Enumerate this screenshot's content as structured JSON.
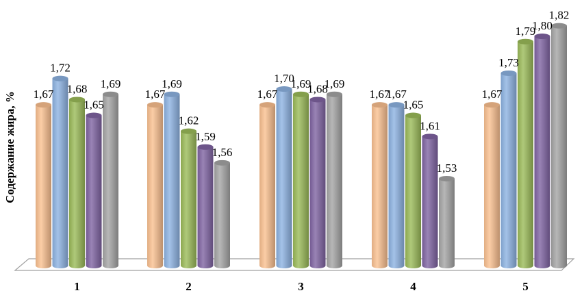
{
  "chart_data": {
    "type": "bar",
    "style": "3d-cylinder",
    "title": "",
    "xlabel": "",
    "ylabel": "Содержание жира, %",
    "categories": [
      "1",
      "2",
      "3",
      "4",
      "5"
    ],
    "ylim": [
      1.36,
      1.85
    ],
    "grid": false,
    "legend": "none",
    "series": [
      {
        "color": "#fac090",
        "values": [
          1.67,
          1.67,
          1.67,
          1.67,
          1.67
        ],
        "labels": [
          "1,67",
          "1,67",
          "1,67",
          "1,67",
          "1,67"
        ]
      },
      {
        "color": "#8db3e2",
        "values": [
          1.72,
          1.69,
          1.7,
          1.67,
          1.73
        ],
        "labels": [
          "1,72",
          "1,69",
          "1,70",
          "1,67",
          "1,73"
        ]
      },
      {
        "color": "#9bbb59",
        "values": [
          1.68,
          1.62,
          1.69,
          1.65,
          1.79
        ],
        "labels": [
          "1,68",
          "1,62",
          "1,69",
          "1,65",
          "1,79"
        ]
      },
      {
        "color": "#8064a2",
        "values": [
          1.65,
          1.59,
          1.68,
          1.61,
          1.8
        ],
        "labels": [
          "1,65",
          "1,59",
          "1,68",
          "1,61",
          "1,80"
        ]
      },
      {
        "color": "#a5a5a5",
        "values": [
          1.69,
          1.56,
          1.69,
          1.53,
          1.82
        ],
        "labels": [
          "1,69",
          "1,56",
          "1,69",
          "1,53",
          "1,82"
        ]
      }
    ]
  }
}
